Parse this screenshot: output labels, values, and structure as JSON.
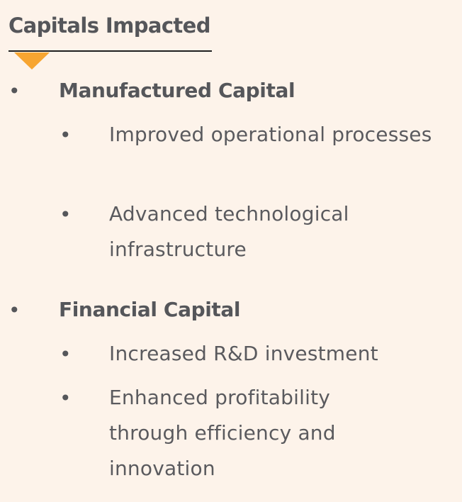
{
  "section": {
    "title": "Capitals Impacted",
    "accent_color": "#f7a531",
    "background_color": "#fdf3ea"
  },
  "capitals": [
    {
      "name": "Manufactured Capital",
      "items": [
        "Improved operational processes",
        "Advanced technological infrastructure"
      ]
    },
    {
      "name": "Financial Capital",
      "items": [
        "Increased R&D investment",
        "Enhanced profitability through efficiency and innovation"
      ]
    }
  ],
  "bullet_glyph": "•"
}
